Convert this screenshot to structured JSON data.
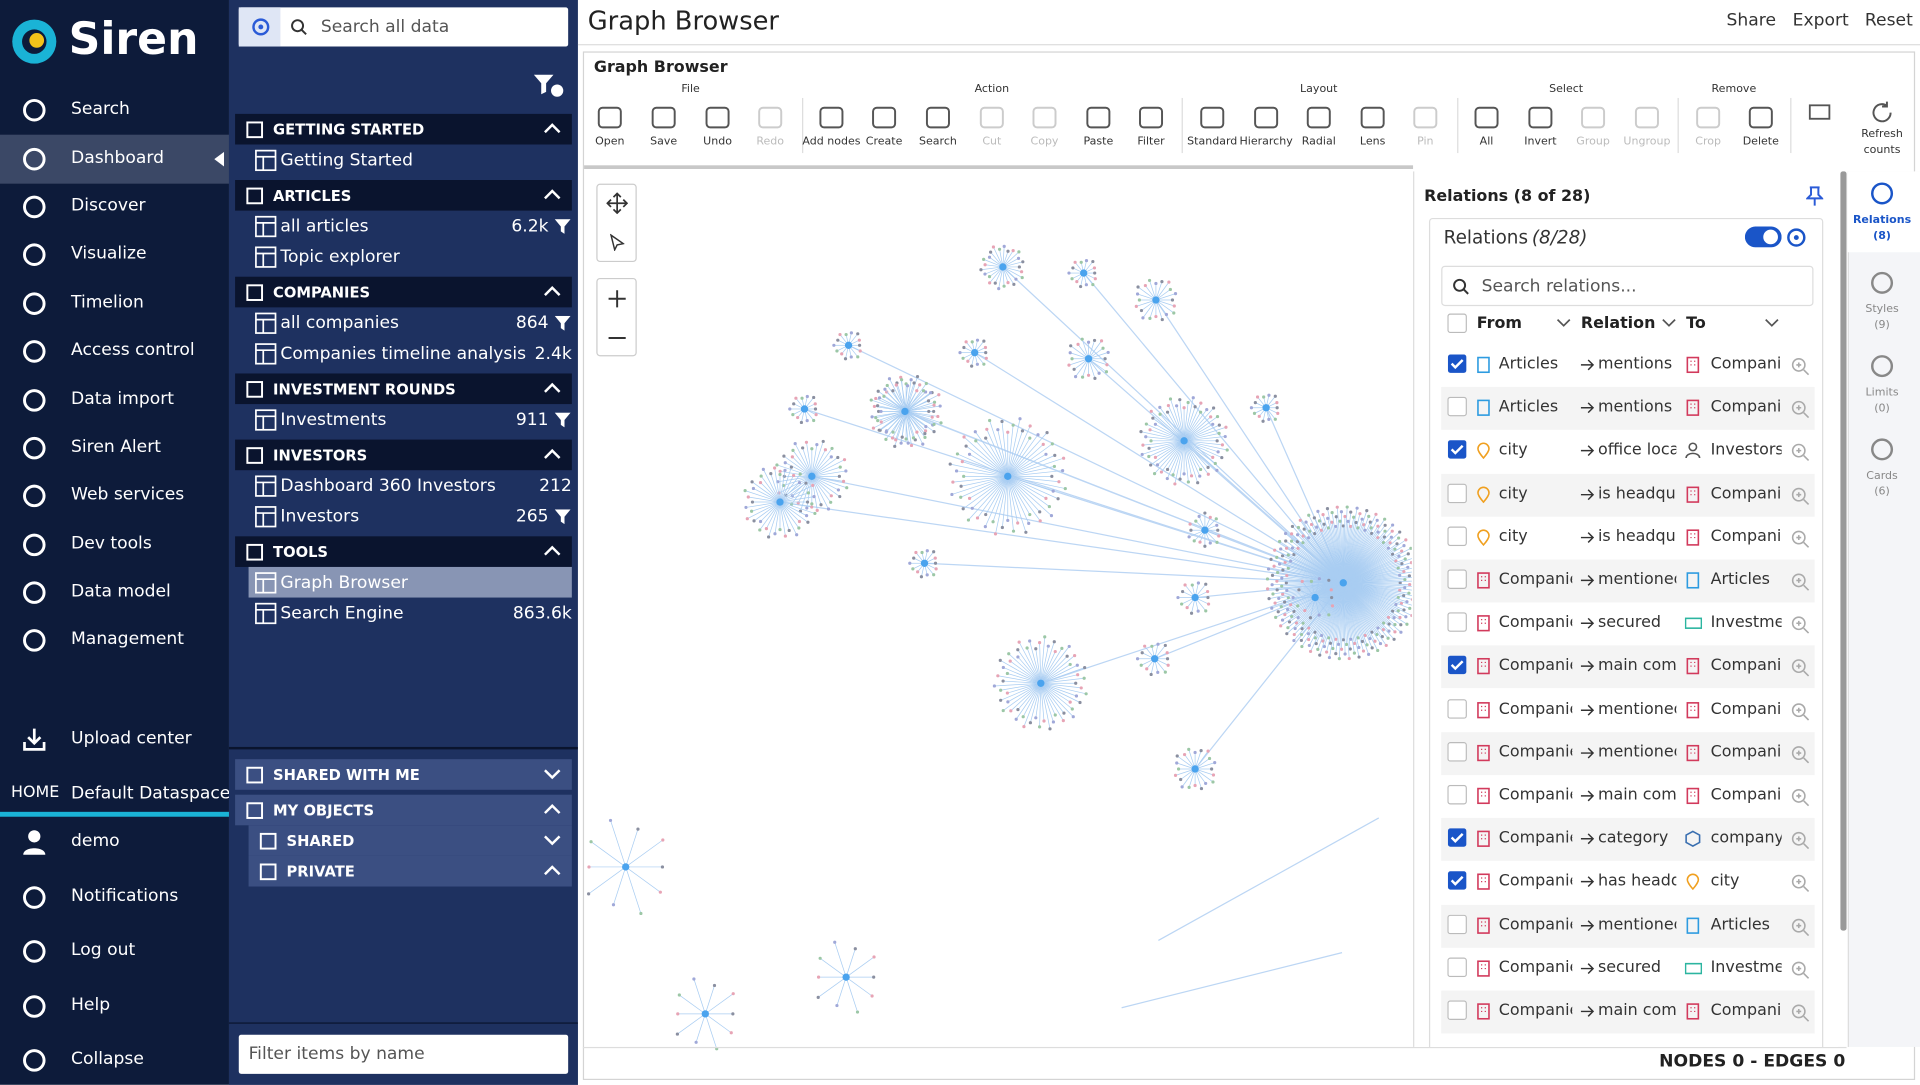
{
  "nav": {
    "logo": "Siren",
    "items": [
      "Search",
      "Dashboard",
      "Discover",
      "Visualize",
      "Timelion",
      "Access control",
      "Data import",
      "Siren Alert",
      "Web services",
      "Dev tools",
      "Data model",
      "Management"
    ],
    "upload": "Upload center",
    "home_label": "HOME",
    "dataspace": "Default Dataspace",
    "user": "demo",
    "bottom": [
      "Notifications",
      "Log out",
      "Help",
      "Collapse"
    ]
  },
  "sidebar": {
    "search_placeholder": "Search all data",
    "sections": [
      {
        "title": "GETTING STARTED",
        "items": [
          {
            "label": "Getting Started"
          }
        ]
      },
      {
        "title": "ARTICLES",
        "items": [
          {
            "label": "all articles",
            "count": "6.2k",
            "filter": true
          },
          {
            "label": "Topic explorer"
          }
        ]
      },
      {
        "title": "COMPANIES",
        "items": [
          {
            "label": "all companies",
            "count": "864",
            "filter": true
          },
          {
            "label": "Companies timeline analysis",
            "count": "2.4k"
          }
        ]
      },
      {
        "title": "INVESTMENT ROUNDS",
        "items": [
          {
            "label": "Investments",
            "count": "911",
            "filter": true
          }
        ]
      },
      {
        "title": "INVESTORS",
        "items": [
          {
            "label": "Dashboard 360 Investors",
            "count": "212"
          },
          {
            "label": "Investors",
            "count": "265",
            "filter": true
          }
        ]
      },
      {
        "title": "TOOLS",
        "items": [
          {
            "label": "Graph Browser",
            "selected": true
          },
          {
            "label": "Search Engine",
            "count": "863.6k"
          }
        ]
      }
    ],
    "shared_with_me": "SHARED WITH ME",
    "my_objects": "MY OBJECTS",
    "shared": "SHARED",
    "private": "PRIVATE",
    "filter_placeholder": "Filter items by name"
  },
  "header": {
    "title": "Graph Browser",
    "actions": [
      "Share",
      "Export",
      "Reset"
    ]
  },
  "panel": {
    "title": "Graph Browser",
    "groups": [
      {
        "label": "File",
        "buttons": [
          {
            "label": "Open"
          },
          {
            "label": "Save"
          },
          {
            "label": "Undo"
          },
          {
            "label": "Redo",
            "disabled": true
          }
        ]
      },
      {
        "label": "Action",
        "buttons": [
          {
            "label": "Add nodes"
          },
          {
            "label": "Create"
          },
          {
            "label": "Search"
          },
          {
            "label": "Cut",
            "disabled": true
          },
          {
            "label": "Copy",
            "disabled": true
          },
          {
            "label": "Paste"
          },
          {
            "label": "Filter"
          }
        ]
      },
      {
        "label": "Layout",
        "buttons": [
          {
            "label": "Standard"
          },
          {
            "label": "Hierarchy"
          },
          {
            "label": "Radial"
          },
          {
            "label": "Lens"
          },
          {
            "label": "Pin",
            "disabled": true
          }
        ]
      },
      {
        "label": "Select",
        "buttons": [
          {
            "label": "All"
          },
          {
            "label": "Invert"
          },
          {
            "label": "Group",
            "disabled": true
          },
          {
            "label": "Ungroup",
            "disabled": true
          }
        ]
      },
      {
        "label": "Remove",
        "buttons": [
          {
            "label": "Crop",
            "disabled": true
          },
          {
            "label": "Delete"
          }
        ]
      }
    ],
    "refresh": "Refresh counts",
    "status": "NODES 0 - EDGES 0"
  },
  "relations": {
    "title": "Relations (8 of 28)",
    "box_title": "Relations",
    "box_count": "(8/28)",
    "search_placeholder": "Search relations...",
    "columns": [
      "From",
      "Relation",
      "To"
    ],
    "rows": [
      {
        "checked": true,
        "from": "Articles",
        "relation": "mentions",
        "to": "Companie"
      },
      {
        "checked": false,
        "from": "Articles",
        "relation": "mentions",
        "to": "Companie"
      },
      {
        "checked": true,
        "from": "city",
        "relation": "office locat",
        "to": "Investors"
      },
      {
        "checked": false,
        "from": "city",
        "relation": "is headqua",
        "to": "Companie"
      },
      {
        "checked": false,
        "from": "city",
        "relation": "is headqua",
        "to": "Companie"
      },
      {
        "checked": false,
        "from": "Companie",
        "relation": "mentioned",
        "to": "Articles"
      },
      {
        "checked": false,
        "from": "Companie",
        "relation": "secured",
        "to": "Investmer"
      },
      {
        "checked": true,
        "from": "Companie",
        "relation": "main comp",
        "to": "Companie"
      },
      {
        "checked": false,
        "from": "Companie",
        "relation": "mentioned",
        "to": "Companie"
      },
      {
        "checked": false,
        "from": "Companie",
        "relation": "mentioned",
        "to": "Companie"
      },
      {
        "checked": false,
        "from": "Companie",
        "relation": "main comp",
        "to": "Companie"
      },
      {
        "checked": true,
        "from": "Companie",
        "relation": "category",
        "to": "company_"
      },
      {
        "checked": true,
        "from": "Companie",
        "relation": "has headqu",
        "to": "city"
      },
      {
        "checked": false,
        "from": "Companie",
        "relation": "mentioned",
        "to": "Articles"
      },
      {
        "checked": false,
        "from": "Companie",
        "relation": "secured",
        "to": "Investmer"
      },
      {
        "checked": false,
        "from": "Companie",
        "relation": "main comp",
        "to": "Companie"
      }
    ]
  },
  "tabs": [
    {
      "label": "Relations",
      "count": "(8)",
      "active": true
    },
    {
      "label": "Styles",
      "count": "(9)"
    },
    {
      "label": "Limits",
      "count": "(0)"
    },
    {
      "label": "Cards",
      "count": "(6)"
    }
  ]
}
